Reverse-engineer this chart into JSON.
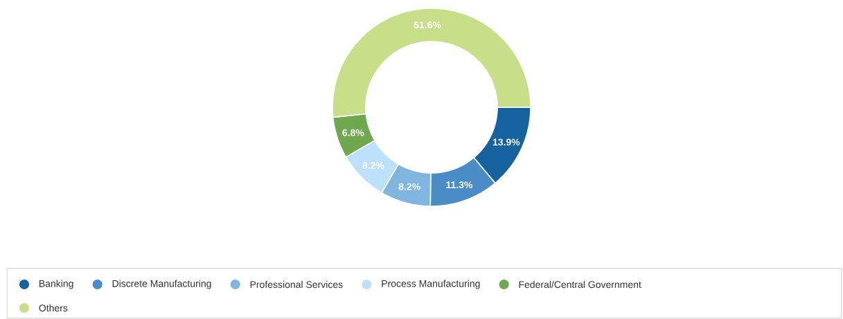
{
  "chart_data": {
    "type": "donut",
    "categories": [
      "Banking",
      "Discrete Manufacturing",
      "Professional Services",
      "Process Manufacturing",
      "Federal/Central Government",
      "Others"
    ],
    "values": [
      13.9,
      11.3,
      8.2,
      8.2,
      6.8,
      51.6
    ],
    "colors": [
      "#16629f",
      "#4a8dc6",
      "#80b5e0",
      "#bde0fb",
      "#70a84f",
      "#c8df8a"
    ],
    "value_labels": [
      "13.9%",
      "11.3%",
      "8.2%",
      "8.2%",
      "6.8%",
      "51.6%"
    ],
    "legend": "bottom"
  }
}
